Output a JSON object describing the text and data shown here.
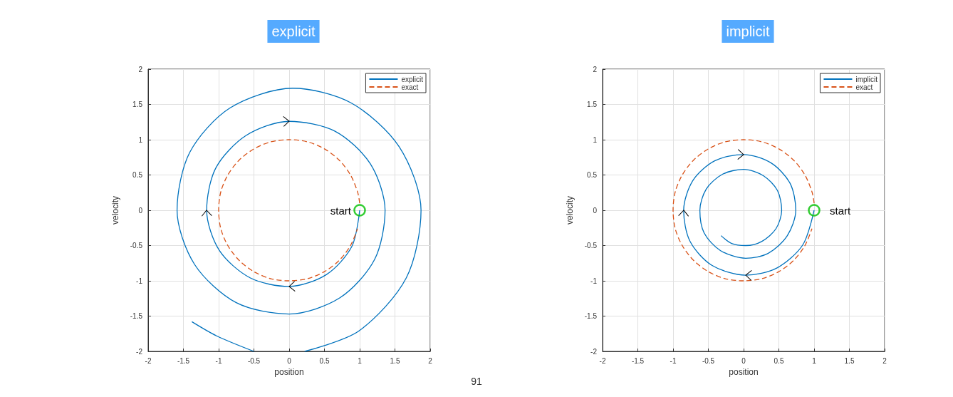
{
  "chart_data": [
    {
      "type": "line",
      "title": "explicit",
      "xlabel": "position",
      "ylabel": "velocity",
      "xlim": [
        -2,
        2
      ],
      "ylim": [
        -2,
        2
      ],
      "xticks": [
        -2,
        -1.5,
        -1,
        -0.5,
        0,
        0.5,
        1,
        1.5,
        2
      ],
      "yticks": [
        -2,
        -1.5,
        -1,
        -0.5,
        0,
        0.5,
        1,
        1.5,
        2
      ],
      "grid": true,
      "legend": "top right",
      "series": [
        {
          "name": "explicit",
          "color": "#0072bd",
          "x": [
            1,
            0.89,
            0.53,
            0,
            -0.55,
            -0.99,
            -1.17,
            -1.04,
            -0.61,
            0,
            0.65,
            1.15,
            1.36,
            1.21,
            0.72,
            0,
            -0.75,
            -1.34,
            -1.59,
            -1.41,
            -0.84,
            0.05,
            0.88,
            1.56,
            1.87,
            1.66,
            0.99,
            0.22,
            null,
            -0.5,
            -1.03,
            -1.38
          ],
          "values": [
            0,
            -0.51,
            -0.91,
            -1.08,
            -0.96,
            -0.57,
            0,
            0.6,
            1.06,
            1.26,
            1.12,
            0.66,
            0,
            -0.7,
            -1.24,
            -1.47,
            -1.31,
            -0.77,
            0,
            0.82,
            1.45,
            1.73,
            1.52,
            0.9,
            0,
            -0.96,
            -1.71,
            -2,
            null,
            -2,
            -1.78,
            -1.58
          ]
        },
        {
          "name": "exact",
          "color": "#d95319",
          "line_style": "dashed",
          "x": [
            1,
            0.97,
            0.87,
            0.71,
            0.5,
            0.26,
            0,
            -0.26,
            -0.5,
            -0.71,
            -0.87,
            -0.97,
            -1,
            -0.97,
            -0.87,
            -0.71,
            -0.5,
            -0.26,
            0,
            0.26,
            0.5,
            0.71,
            0.87,
            0.97
          ],
          "values": [
            0.1,
            0.26,
            0.5,
            0.71,
            0.87,
            0.97,
            1,
            0.97,
            0.87,
            0.71,
            0.5,
            0.26,
            0,
            -0.26,
            -0.5,
            -0.71,
            -0.87,
            -0.97,
            -1,
            -0.97,
            -0.87,
            -0.71,
            -0.5,
            -0.26
          ]
        },
        {
          "type": "scatter",
          "color": "#00c000",
          "marker": "circle",
          "x": [
            1
          ],
          "values": [
            0
          ]
        }
      ],
      "annotations": [
        {
          "text": "start",
          "x": 1,
          "y": 0
        }
      ]
    },
    {
      "type": "line",
      "title": "implicit",
      "xlabel": "position",
      "ylabel": "velocity",
      "xlim": [
        -2,
        2
      ],
      "ylim": [
        -2,
        2
      ],
      "xticks": [
        -2,
        -1.5,
        -1,
        -0.5,
        0,
        0.5,
        1,
        1.5,
        2
      ],
      "yticks": [
        -2,
        -1.5,
        -1,
        -0.5,
        0,
        0.5,
        1,
        1.5,
        2
      ],
      "grid": true,
      "legend": "top right",
      "series": [
        {
          "name": "implicit",
          "color": "#0072bd",
          "x": [
            1,
            0.84,
            0.47,
            0.03,
            -0.45,
            -0.76,
            -0.85,
            -0.72,
            -0.41,
            0,
            0.39,
            0.66,
            0.74,
            0.62,
            0.35,
            0.03,
            -0.33,
            -0.56,
            -0.62,
            -0.53,
            -0.3,
            0,
            0.28,
            0.48,
            0.54,
            0.46,
            0.26,
            0.03,
            -0.17,
            -0.32
          ],
          "values": [
            0,
            -0.49,
            -0.82,
            -0.92,
            -0.78,
            -0.44,
            0,
            0.42,
            0.7,
            0.79,
            0.67,
            0.38,
            0,
            -0.36,
            -0.61,
            -0.68,
            -0.57,
            -0.32,
            0,
            0.3,
            0.51,
            0.58,
            0.49,
            0.28,
            0,
            -0.26,
            -0.44,
            -0.5,
            -0.47,
            -0.36
          ]
        },
        {
          "name": "exact",
          "color": "#d95319",
          "line_style": "dashed",
          "x": [
            1,
            0.97,
            0.87,
            0.71,
            0.5,
            0.26,
            0,
            -0.26,
            -0.5,
            -0.71,
            -0.87,
            -0.97,
            -1,
            -0.97,
            -0.87,
            -0.71,
            -0.5,
            -0.26,
            0,
            0.26,
            0.5,
            0.71,
            0.87,
            0.97
          ],
          "values": [
            0.1,
            0.26,
            0.5,
            0.71,
            0.87,
            0.97,
            1,
            0.97,
            0.87,
            0.71,
            0.5,
            0.26,
            0,
            -0.26,
            -0.5,
            -0.71,
            -0.87,
            -0.97,
            -1,
            -0.97,
            -0.87,
            -0.71,
            -0.5,
            -0.26
          ]
        },
        {
          "type": "scatter",
          "color": "#00c000",
          "marker": "circle",
          "x": [
            1
          ],
          "values": [
            0
          ]
        }
      ],
      "annotations": [
        {
          "text": "start",
          "x": 1,
          "y": 0
        }
      ]
    },
    {
      "type": "other",
      "annotations": [
        "91"
      ]
    }
  ]
}
